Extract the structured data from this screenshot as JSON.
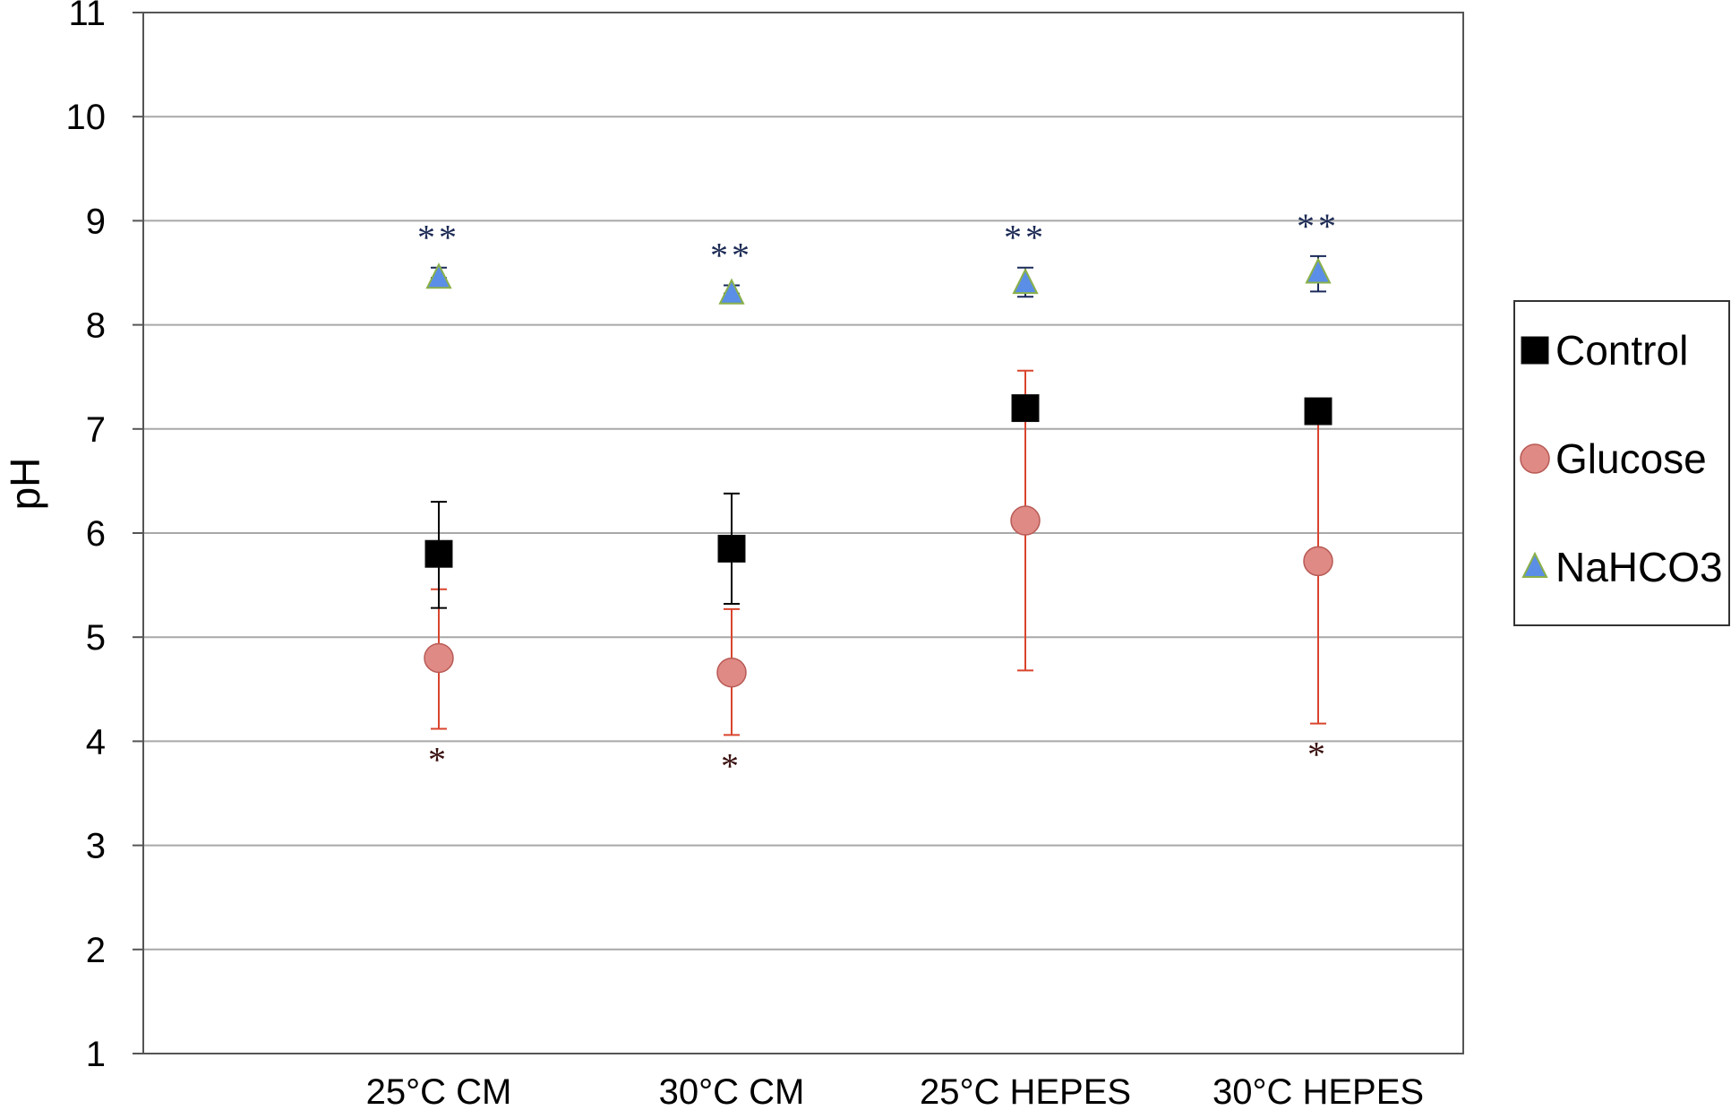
{
  "chart_data": {
    "type": "scatter",
    "title": "",
    "xlabel": "",
    "ylabel": "pH",
    "ylim": [
      1,
      11
    ],
    "yticks": [
      1,
      2,
      3,
      4,
      5,
      6,
      7,
      8,
      9,
      10,
      11
    ],
    "categories": [
      "25°C CM",
      "30°C CM",
      "25°C HEPES",
      "30°C HEPES"
    ],
    "grid": "horizontal",
    "legend_position": "right",
    "series": [
      {
        "name": "Control",
        "marker": "square",
        "color": "#000000",
        "error_color": "#000000",
        "values": [
          5.8,
          5.85,
          7.2,
          7.17
        ],
        "err_low": [
          5.28,
          5.32,
          7.2,
          7.1
        ],
        "err_high": [
          6.3,
          6.38,
          7.2,
          7.25
        ],
        "annotations": [
          "",
          "",
          "",
          ""
        ]
      },
      {
        "name": "Glucose",
        "marker": "circle",
        "color": "#e08a86",
        "error_color": "#d9452e",
        "values": [
          4.8,
          4.66,
          6.12,
          5.73
        ],
        "err_low": [
          4.12,
          4.06,
          4.68,
          4.17
        ],
        "err_high": [
          5.46,
          5.27,
          7.56,
          7.28
        ],
        "annotations": [
          "*",
          "*",
          "",
          "*"
        ],
        "annotation_color": "#3a1010"
      },
      {
        "name": "NaHCO3",
        "marker": "triangle",
        "color": "#5b8ee6",
        "error_color": "#1a2a5a",
        "values": [
          8.45,
          8.3,
          8.4,
          8.5
        ],
        "err_low": [
          8.45,
          8.3,
          8.27,
          8.32
        ],
        "err_high": [
          8.55,
          8.38,
          8.55,
          8.66
        ],
        "annotations": [
          "**",
          "**",
          "**",
          "**"
        ],
        "annotation_color": "#1d2b55"
      }
    ]
  }
}
